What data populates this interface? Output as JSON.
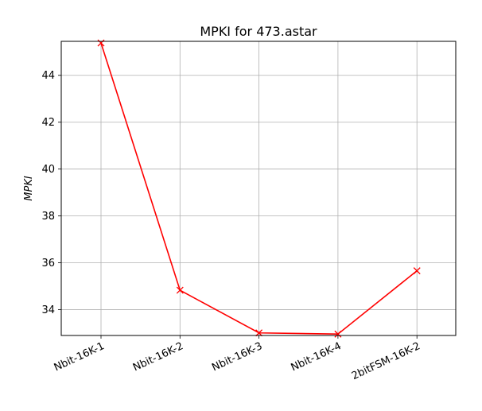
{
  "chart_data": {
    "type": "line",
    "title": "MPKI for 473.astar",
    "xlabel": "",
    "ylabel": "MPKI",
    "categories": [
      "Nbit-16K-1",
      "Nbit-16K-2",
      "Nbit-16K-3",
      "Nbit-16K-4",
      "2bitFSM-16K-2"
    ],
    "series": [
      {
        "values": [
          45.38,
          34.83,
          33.01,
          32.96,
          35.66
        ],
        "color": "#ff0000",
        "marker": "x"
      }
    ],
    "ylim": [
      32.9,
      45.45
    ],
    "yticks": [
      34,
      36,
      38,
      40,
      42,
      44
    ],
    "grid": true,
    "legend": "none"
  }
}
